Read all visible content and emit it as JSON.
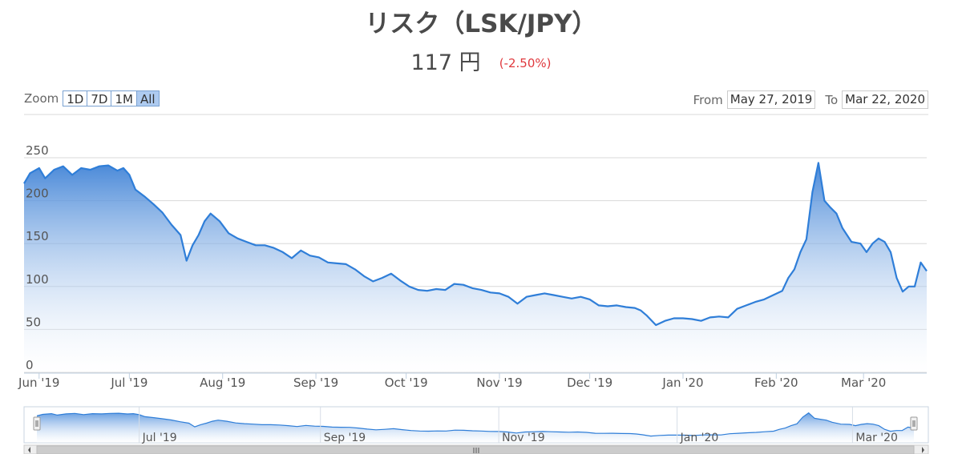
{
  "header": {
    "title": "リスク（LSK/JPY）",
    "price": "117 円",
    "change": "(-2.50%)"
  },
  "zoom": {
    "label": "Zoom",
    "buttons": [
      "1D",
      "7D",
      "1M",
      "All"
    ],
    "active": "All"
  },
  "range": {
    "from_label": "From",
    "from_value": "May 27, 2019",
    "to_label": "To",
    "to_value": "Mar 22, 2020"
  },
  "colors": {
    "line": "#2f7ed8",
    "fill_top": "#4f8fdc",
    "fill_bottom": "#ffffff",
    "grid": "#d8d8d8",
    "change": "#e0393e"
  },
  "chart_data": {
    "type": "area",
    "x_start": "2019-05-27",
    "x_end": "2020-03-22",
    "ylim": [
      0,
      250
    ],
    "yticks": [
      0,
      50,
      100,
      150,
      200,
      250
    ],
    "xticks": [
      {
        "label": "Jun '19",
        "date": "2019-06-01"
      },
      {
        "label": "Jul '19",
        "date": "2019-07-01"
      },
      {
        "label": "Aug '19",
        "date": "2019-08-01"
      },
      {
        "label": "Sep '19",
        "date": "2019-09-01"
      },
      {
        "label": "Oct '19",
        "date": "2019-10-01"
      },
      {
        "label": "Nov '19",
        "date": "2019-11-01"
      },
      {
        "label": "Dec '19",
        "date": "2019-12-01"
      },
      {
        "label": "Jan '20",
        "date": "2020-01-01"
      },
      {
        "label": "Feb '20",
        "date": "2020-02-01"
      },
      {
        "label": "Mar '20",
        "date": "2020-03-01"
      }
    ],
    "navigator_ticks": [
      {
        "label": "Jul '19",
        "date": "2019-07-01"
      },
      {
        "label": "Sep '19",
        "date": "2019-09-01"
      },
      {
        "label": "Nov '19",
        "date": "2019-11-01"
      },
      {
        "label": "Jan '20",
        "date": "2020-01-01"
      },
      {
        "label": "Mar '20",
        "date": "2020-03-01"
      }
    ],
    "grid": true,
    "legend": "none",
    "x": [
      "2019-05-27",
      "2019-05-29",
      "2019-06-01",
      "2019-06-03",
      "2019-06-06",
      "2019-06-09",
      "2019-06-12",
      "2019-06-15",
      "2019-06-18",
      "2019-06-21",
      "2019-06-24",
      "2019-06-27",
      "2019-06-29",
      "2019-07-01",
      "2019-07-03",
      "2019-07-06",
      "2019-07-09",
      "2019-07-12",
      "2019-07-15",
      "2019-07-18",
      "2019-07-20",
      "2019-07-22",
      "2019-07-24",
      "2019-07-26",
      "2019-07-28",
      "2019-07-31",
      "2019-08-03",
      "2019-08-06",
      "2019-08-09",
      "2019-08-12",
      "2019-08-15",
      "2019-08-18",
      "2019-08-21",
      "2019-08-24",
      "2019-08-27",
      "2019-08-30",
      "2019-09-02",
      "2019-09-05",
      "2019-09-08",
      "2019-09-11",
      "2019-09-14",
      "2019-09-17",
      "2019-09-20",
      "2019-09-23",
      "2019-09-26",
      "2019-09-29",
      "2019-10-02",
      "2019-10-05",
      "2019-10-08",
      "2019-10-11",
      "2019-10-14",
      "2019-10-17",
      "2019-10-20",
      "2019-10-23",
      "2019-10-26",
      "2019-10-29",
      "2019-11-01",
      "2019-11-04",
      "2019-11-07",
      "2019-11-10",
      "2019-11-13",
      "2019-11-16",
      "2019-11-19",
      "2019-11-22",
      "2019-11-25",
      "2019-11-28",
      "2019-12-01",
      "2019-12-04",
      "2019-12-07",
      "2019-12-10",
      "2019-12-13",
      "2019-12-16",
      "2019-12-18",
      "2019-12-20",
      "2019-12-23",
      "2019-12-26",
      "2019-12-29",
      "2020-01-01",
      "2020-01-04",
      "2020-01-07",
      "2020-01-10",
      "2020-01-13",
      "2020-01-16",
      "2020-01-19",
      "2020-01-22",
      "2020-01-25",
      "2020-01-28",
      "2020-01-31",
      "2020-02-03",
      "2020-02-05",
      "2020-02-07",
      "2020-02-09",
      "2020-02-11",
      "2020-02-13",
      "2020-02-15",
      "2020-02-17",
      "2020-02-19",
      "2020-02-21",
      "2020-02-23",
      "2020-02-26",
      "2020-02-29",
      "2020-03-02",
      "2020-03-04",
      "2020-03-06",
      "2020-03-08",
      "2020-03-10",
      "2020-03-12",
      "2020-03-14",
      "2020-03-16",
      "2020-03-18",
      "2020-03-20",
      "2020-03-22"
    ],
    "values": [
      220,
      232,
      238,
      226,
      236,
      240,
      230,
      238,
      236,
      240,
      241,
      235,
      238,
      230,
      213,
      205,
      196,
      186,
      172,
      160,
      130,
      148,
      160,
      176,
      185,
      176,
      162,
      156,
      152,
      148,
      148,
      145,
      140,
      133,
      142,
      136,
      134,
      128,
      127,
      126,
      120,
      112,
      106,
      110,
      115,
      107,
      100,
      96,
      95,
      97,
      96,
      103,
      102,
      98,
      96,
      93,
      92,
      88,
      80,
      88,
      90,
      92,
      90,
      88,
      86,
      88,
      85,
      78,
      77,
      78,
      76,
      75,
      72,
      66,
      55,
      60,
      63,
      63,
      62,
      60,
      64,
      65,
      64,
      74,
      78,
      82,
      85,
      90,
      95,
      110,
      120,
      140,
      155,
      210,
      244,
      200,
      192,
      185,
      168,
      152,
      150,
      140,
      150,
      156,
      152,
      140,
      110,
      94,
      100,
      100,
      128,
      118
    ]
  }
}
